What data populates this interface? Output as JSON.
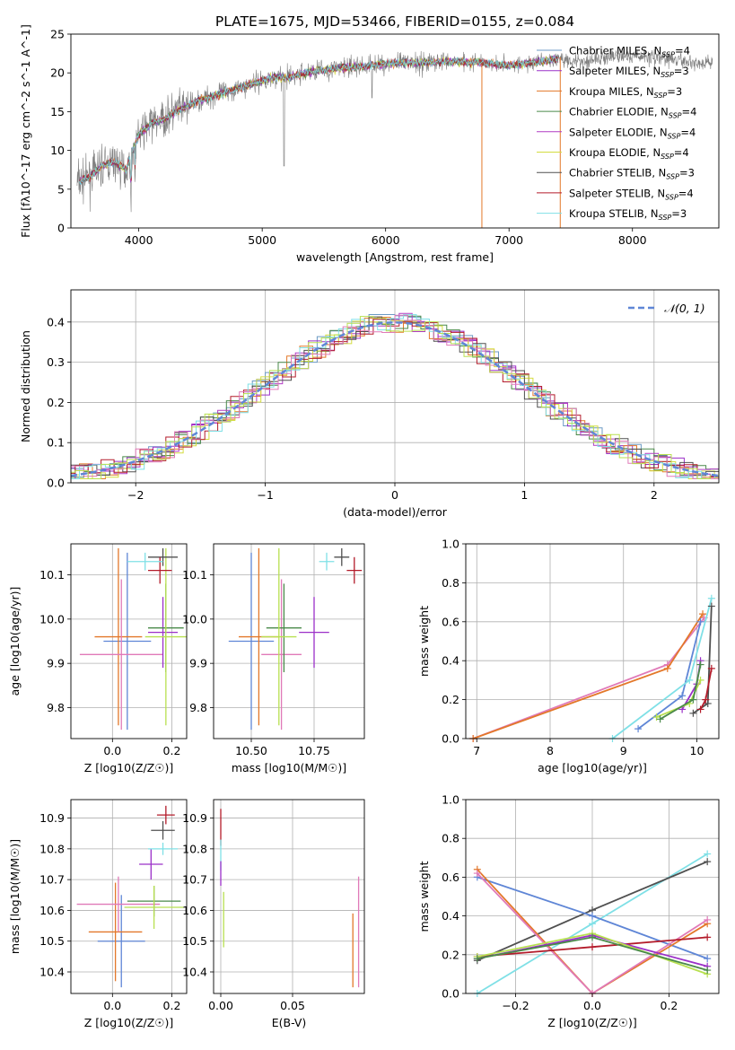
{
  "figure": {
    "title": "PLATE=1675, MJD=53466, FIBERID=0155, z=0.084"
  },
  "colors": {
    "c1": "#6b9ac4",
    "c2": "#9b30c8",
    "c3": "#e3782a",
    "c4": "#4a8a4a",
    "c5": "#b13cc4",
    "c6": "#d4dc40",
    "c7": "#505050",
    "c8": "#b31b2a",
    "c9": "#7fe0e6",
    "blue": "#5f86d6",
    "pink": "#e07ab8",
    "lime": "#b8e050"
  },
  "chart_data": [
    {
      "id": "spectrum",
      "type": "line",
      "xlabel": "wavelength [Angstrom, rest frame]",
      "ylabel": "Flux [fλ10^-17 erg cm^-2 s^-1 A^-1]",
      "xlim": [
        3450,
        8700
      ],
      "ylim": [
        0,
        25
      ],
      "xticks": [
        4000,
        5000,
        6000,
        7000,
        8000
      ],
      "yticks": [
        0,
        5,
        10,
        15,
        20,
        25
      ],
      "legend_position": "top-right",
      "legend": [
        {
          "label": "Chabrier MILES, N",
          "sub": "SSP",
          "tail": "=4",
          "color": "#6b9ac4"
        },
        {
          "label": "Salpeter MILES, N",
          "sub": "SSP",
          "tail": "=3",
          "color": "#9b30c8"
        },
        {
          "label": "Kroupa MILES, N",
          "sub": "SSP",
          "tail": "=3",
          "color": "#e3782a"
        },
        {
          "label": "Chabrier ELODIE, N",
          "sub": "SSP",
          "tail": "=4",
          "color": "#4a8a4a"
        },
        {
          "label": "Salpeter ELODIE, N",
          "sub": "SSP",
          "tail": "=4",
          "color": "#b13cc4"
        },
        {
          "label": "Kroupa ELODIE, N",
          "sub": "SSP",
          "tail": "=4",
          "color": "#d4dc40"
        },
        {
          "label": "Chabrier STELIB, N",
          "sub": "SSP",
          "tail": "=3",
          "color": "#505050"
        },
        {
          "label": "Salpeter STELIB, N",
          "sub": "SSP",
          "tail": "=4",
          "color": "#b31b2a"
        },
        {
          "label": "Kroupa STELIB, N",
          "sub": "SSP",
          "tail": "=3",
          "color": "#7fe0e6"
        }
      ],
      "continuum": [
        [
          3500,
          6
        ],
        [
          3600,
          6.5
        ],
        [
          3700,
          8
        ],
        [
          3800,
          8.5
        ],
        [
          3900,
          7.5
        ],
        [
          3950,
          10
        ],
        [
          4000,
          12
        ],
        [
          4100,
          13.5
        ],
        [
          4200,
          14
        ],
        [
          4300,
          15
        ],
        [
          4400,
          15.8
        ],
        [
          4500,
          16.5
        ],
        [
          4600,
          17
        ],
        [
          4700,
          17.5
        ],
        [
          4800,
          18
        ],
        [
          4900,
          18.5
        ],
        [
          5000,
          19
        ],
        [
          5100,
          19.5
        ],
        [
          5200,
          19.3
        ],
        [
          5300,
          19.8
        ],
        [
          5400,
          20.2
        ],
        [
          5500,
          20.4
        ],
        [
          5600,
          20.6
        ],
        [
          5700,
          20.7
        ],
        [
          5800,
          20.8
        ],
        [
          5900,
          21
        ],
        [
          6000,
          21.2
        ],
        [
          6200,
          21.3
        ],
        [
          6400,
          21.4
        ],
        [
          6600,
          21.5
        ],
        [
          6800,
          21.3
        ],
        [
          7000,
          21
        ],
        [
          7200,
          21.3
        ],
        [
          7400,
          21.8
        ],
        [
          7600,
          21.5
        ],
        [
          7800,
          22
        ],
        [
          8000,
          22.2
        ],
        [
          8200,
          22
        ],
        [
          8400,
          21.5
        ],
        [
          8600,
          21.2
        ]
      ]
    },
    {
      "id": "residual-histogram",
      "type": "line",
      "xlabel": "(data-model)/error",
      "ylabel": "Normed distribution",
      "xlim": [
        -2.5,
        2.5
      ],
      "ylim": [
        0,
        0.48
      ],
      "xticks": [
        -2,
        -1,
        0,
        1,
        2
      ],
      "yticks": [
        0.0,
        0.1,
        0.2,
        0.3,
        0.4
      ],
      "legend": "𝒩(0, 1)",
      "legend_position": "top-right",
      "grid": true
    },
    {
      "id": "age-vs-Z",
      "type": "scatter",
      "xlabel": "Z [log10(Z/Z☉)]",
      "ylabel": "age  [log10(age/yr)]",
      "xlim": [
        -0.14,
        0.25
      ],
      "ylim": [
        9.73,
        10.17
      ],
      "xticks": [
        0.0,
        0.2
      ],
      "yticks": [
        9.8,
        9.9,
        10.0,
        10.1
      ],
      "grid": true,
      "points": [
        {
          "x": 0.05,
          "y": 9.95,
          "xerr": 0.08,
          "yerr": 0.2,
          "color": "#5f86d6"
        },
        {
          "x": 0.02,
          "y": 9.96,
          "xerr": 0.08,
          "yerr": 0.2,
          "color": "#e3782a"
        },
        {
          "x": 0.03,
          "y": 9.92,
          "xerr": 0.14,
          "yerr": 0.17,
          "color": "#e07ab8"
        },
        {
          "x": 0.17,
          "y": 9.97,
          "xerr": 0.05,
          "yerr": 0.08,
          "color": "#9b30c8"
        },
        {
          "x": 0.18,
          "y": 9.98,
          "xerr": 0.06,
          "yerr": 0.1,
          "color": "#4a8a4a"
        },
        {
          "x": 0.18,
          "y": 9.96,
          "xerr": 0.07,
          "yerr": 0.2,
          "color": "#b8e050"
        },
        {
          "x": 0.17,
          "y": 10.14,
          "xerr": 0.05,
          "yerr": 0.02,
          "color": "#505050"
        },
        {
          "x": 0.16,
          "y": 10.11,
          "xerr": 0.04,
          "yerr": 0.03,
          "color": "#b31b2a"
        },
        {
          "x": 0.11,
          "y": 10.13,
          "xerr": 0.06,
          "yerr": 0.02,
          "color": "#7fe0e6"
        }
      ]
    },
    {
      "id": "age-vs-mass",
      "type": "scatter",
      "xlabel": "mass [log10(M/M☉)]",
      "ylabel": "",
      "xlim": [
        10.35,
        10.95
      ],
      "ylim": [
        9.73,
        10.17
      ],
      "xticks": [
        10.5,
        10.75
      ],
      "yticks": [
        9.8,
        9.9,
        10.0,
        10.1
      ],
      "grid": true,
      "points": [
        {
          "x": 10.5,
          "y": 9.95,
          "xerr": 0.09,
          "yerr": 0.2,
          "color": "#5f86d6"
        },
        {
          "x": 10.53,
          "y": 9.96,
          "xerr": 0.08,
          "yerr": 0.2,
          "color": "#e3782a"
        },
        {
          "x": 10.62,
          "y": 9.92,
          "xerr": 0.08,
          "yerr": 0.17,
          "color": "#e07ab8"
        },
        {
          "x": 10.75,
          "y": 9.97,
          "xerr": 0.06,
          "yerr": 0.08,
          "color": "#9b30c8"
        },
        {
          "x": 10.63,
          "y": 9.98,
          "xerr": 0.07,
          "yerr": 0.1,
          "color": "#4a8a4a"
        },
        {
          "x": 10.61,
          "y": 9.96,
          "xerr": 0.07,
          "yerr": 0.2,
          "color": "#b8e050"
        },
        {
          "x": 10.86,
          "y": 10.14,
          "xerr": 0.03,
          "yerr": 0.02,
          "color": "#505050"
        },
        {
          "x": 10.91,
          "y": 10.11,
          "xerr": 0.03,
          "yerr": 0.03,
          "color": "#b31b2a"
        },
        {
          "x": 10.8,
          "y": 10.13,
          "xerr": 0.03,
          "yerr": 0.02,
          "color": "#7fe0e6"
        }
      ]
    },
    {
      "id": "weight-vs-age",
      "type": "line",
      "xlabel": "age  [log10(age/yr)]",
      "ylabel": "mass weight",
      "xlim": [
        6.85,
        10.3
      ],
      "ylim": [
        0,
        1
      ],
      "xticks": [
        7,
        8,
        9,
        10
      ],
      "yticks": [
        0.0,
        0.2,
        0.4,
        0.6,
        0.8,
        1.0
      ],
      "grid": true,
      "series": [
        {
          "color": "#e07ab8",
          "points": [
            [
              6.95,
              0.0
            ],
            [
              9.6,
              0.38
            ],
            [
              10.1,
              0.62
            ]
          ]
        },
        {
          "color": "#e3782a",
          "points": [
            [
              6.95,
              0.0
            ],
            [
              9.6,
              0.36
            ],
            [
              10.08,
              0.64
            ]
          ]
        },
        {
          "color": "#5f86d6",
          "points": [
            [
              9.2,
              0.05
            ],
            [
              9.8,
              0.22
            ],
            [
              10.05,
              0.6
            ]
          ]
        },
        {
          "color": "#7fe0e6",
          "points": [
            [
              8.85,
              0.0
            ],
            [
              9.9,
              0.3
            ],
            [
              10.2,
              0.72
            ]
          ]
        },
        {
          "color": "#505050",
          "points": [
            [
              9.95,
              0.13
            ],
            [
              10.15,
              0.18
            ],
            [
              10.2,
              0.68
            ]
          ]
        },
        {
          "color": "#b31b2a",
          "points": [
            [
              10.05,
              0.15
            ],
            [
              10.12,
              0.2
            ],
            [
              10.2,
              0.36
            ]
          ]
        },
        {
          "color": "#9b30c8",
          "points": [
            [
              9.8,
              0.15
            ],
            [
              10.0,
              0.28
            ],
            [
              10.05,
              0.4
            ]
          ]
        },
        {
          "color": "#b8e050",
          "points": [
            [
              9.45,
              0.11
            ],
            [
              9.9,
              0.18
            ],
            [
              10.05,
              0.3
            ]
          ]
        },
        {
          "color": "#4a8a4a",
          "points": [
            [
              9.5,
              0.1
            ],
            [
              9.95,
              0.2
            ],
            [
              10.05,
              0.38
            ]
          ]
        }
      ]
    },
    {
      "id": "mass-vs-Z",
      "type": "scatter",
      "xlabel": "Z [log10(Z/Z☉)]",
      "ylabel": "mass [log10(M/M☉)]",
      "xlim": [
        -0.14,
        0.25
      ],
      "ylim": [
        10.33,
        10.96
      ],
      "xticks": [
        0.0,
        0.2
      ],
      "yticks": [
        10.4,
        10.5,
        10.6,
        10.7,
        10.8,
        10.9
      ],
      "grid": true,
      "points": [
        {
          "x": 0.03,
          "y": 10.5,
          "xerr": 0.08,
          "yerr": 0.15,
          "color": "#5f86d6"
        },
        {
          "x": 0.01,
          "y": 10.53,
          "xerr": 0.09,
          "yerr": 0.16,
          "color": "#e3782a"
        },
        {
          "x": 0.02,
          "y": 10.62,
          "xerr": 0.14,
          "yerr": 0.09,
          "color": "#e07ab8"
        },
        {
          "x": 0.13,
          "y": 10.75,
          "xerr": 0.04,
          "yerr": 0.05,
          "color": "#9b30c8"
        },
        {
          "x": 0.14,
          "y": 10.63,
          "xerr": 0.09,
          "yerr": 0.05,
          "color": "#4a8a4a"
        },
        {
          "x": 0.14,
          "y": 10.61,
          "xerr": 0.1,
          "yerr": 0.07,
          "color": "#b8e050"
        },
        {
          "x": 0.17,
          "y": 10.86,
          "xerr": 0.04,
          "yerr": 0.03,
          "color": "#505050"
        },
        {
          "x": 0.18,
          "y": 10.91,
          "xerr": 0.03,
          "yerr": 0.03,
          "color": "#b31b2a"
        },
        {
          "x": 0.17,
          "y": 10.8,
          "xerr": 0.05,
          "yerr": 0.02,
          "color": "#7fe0e6"
        }
      ]
    },
    {
      "id": "mass-vs-ebv",
      "type": "scatter",
      "xlabel": "E(B-V)",
      "ylabel": "",
      "xlim": [
        -0.005,
        0.1
      ],
      "ylim": [
        10.33,
        10.96
      ],
      "xticks": [
        0.0,
        0.05
      ],
      "yticks": [
        10.4,
        10.5,
        10.6,
        10.7,
        10.8,
        10.9
      ],
      "grid": true,
      "points": [
        {
          "x": 0.0,
          "y": 10.87,
          "xerr": 0,
          "yerr": 0.06,
          "color": "#b31b2a"
        },
        {
          "x": 0.0,
          "y": 10.78,
          "xerr": 0,
          "yerr": 0.05,
          "color": "#7fe0e6"
        },
        {
          "x": 0.0,
          "y": 10.72,
          "xerr": 0,
          "yerr": 0.04,
          "color": "#9b30c8"
        },
        {
          "x": 0.002,
          "y": 10.57,
          "xerr": 0,
          "yerr": 0.09,
          "color": "#b8e050"
        },
        {
          "x": 0.092,
          "y": 10.47,
          "xerr": 0,
          "yerr": 0.12,
          "color": "#e3782a"
        },
        {
          "x": 0.096,
          "y": 10.53,
          "xerr": 0,
          "yerr": 0.18,
          "color": "#e07ab8"
        }
      ]
    },
    {
      "id": "weight-vs-Z",
      "type": "line",
      "xlabel": "Z [log10(Z/Z☉)]",
      "ylabel": "mass weight",
      "xlim": [
        -0.33,
        0.33
      ],
      "ylim": [
        0,
        1
      ],
      "xticks": [
        -0.2,
        0.0,
        0.2
      ],
      "yticks": [
        0.0,
        0.2,
        0.4,
        0.6,
        0.8,
        1.0
      ],
      "grid": true,
      "series": [
        {
          "color": "#7fe0e6",
          "points": [
            [
              -0.3,
              0.0
            ],
            [
              0.0,
              0.36
            ],
            [
              0.3,
              0.72
            ]
          ]
        },
        {
          "color": "#505050",
          "points": [
            [
              -0.3,
              0.17
            ],
            [
              0.0,
              0.43
            ],
            [
              0.3,
              0.68
            ]
          ]
        },
        {
          "color": "#5f86d6",
          "points": [
            [
              -0.3,
              0.6
            ],
            [
              0.0,
              0.4
            ],
            [
              0.3,
              0.18
            ]
          ]
        },
        {
          "color": "#e3782a",
          "points": [
            [
              -0.3,
              0.64
            ],
            [
              0.0,
              0.0
            ],
            [
              0.3,
              0.36
            ]
          ]
        },
        {
          "color": "#e07ab8",
          "points": [
            [
              -0.3,
              0.62
            ],
            [
              0.0,
              0.0
            ],
            [
              0.3,
              0.38
            ]
          ]
        },
        {
          "color": "#b31b2a",
          "points": [
            [
              -0.3,
              0.19
            ],
            [
              0.0,
              0.24
            ],
            [
              0.3,
              0.29
            ]
          ]
        },
        {
          "color": "#9b30c8",
          "points": [
            [
              -0.3,
              0.18
            ],
            [
              0.0,
              0.3
            ],
            [
              0.3,
              0.14
            ]
          ]
        },
        {
          "color": "#b8e050",
          "points": [
            [
              -0.3,
              0.19
            ],
            [
              0.0,
              0.31
            ],
            [
              0.3,
              0.1
            ]
          ]
        },
        {
          "color": "#4a8a4a",
          "points": [
            [
              -0.3,
              0.18
            ],
            [
              0.0,
              0.29
            ],
            [
              0.3,
              0.12
            ]
          ]
        }
      ]
    }
  ]
}
